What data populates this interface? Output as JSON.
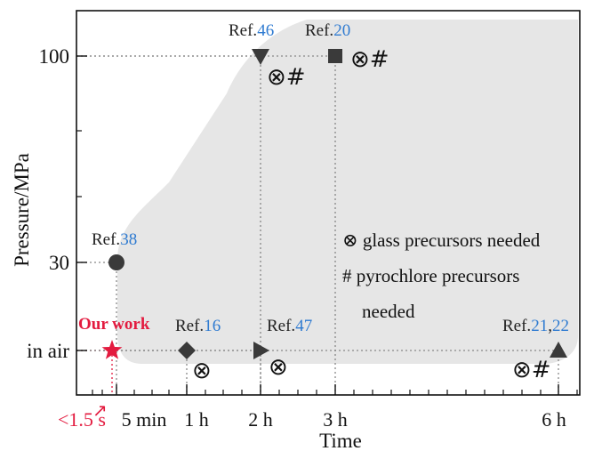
{
  "chart_data": {
    "type": "scatter",
    "title": "",
    "xlabel": "Time",
    "ylabel": "Pressure/MPa",
    "x_ticks": [
      "5 min",
      "1 h",
      "2 h",
      "3 h",
      "6 h"
    ],
    "x_extra_label": "<1.5 s",
    "y_ticks": [
      "100",
      "30",
      "in air"
    ],
    "grid": false,
    "points": [
      {
        "label": "Our work",
        "x": "<1.5 s",
        "y": "in air",
        "marker": "star",
        "color": "#e31b3f",
        "symbols": ""
      },
      {
        "label_prefix": "Ref.",
        "refs": [
          "38"
        ],
        "x": "5 min",
        "y": "30",
        "marker": "circle",
        "color": "#3a3a3a",
        "symbols": ""
      },
      {
        "label_prefix": "Ref.",
        "refs": [
          "16"
        ],
        "x": "1 h",
        "y": "in air",
        "marker": "diamond",
        "color": "#3a3a3a",
        "symbols": "⊗"
      },
      {
        "label_prefix": "Ref.",
        "refs": [
          "46"
        ],
        "x": "2 h",
        "y": "100",
        "marker": "triangle-down",
        "color": "#3a3a3a",
        "symbols": "⊗#"
      },
      {
        "label_prefix": "Ref.",
        "refs": [
          "47"
        ],
        "x": "2 h",
        "y": "in air",
        "marker": "triangle-right",
        "color": "#3a3a3a",
        "symbols": "⊗"
      },
      {
        "label_prefix": "Ref.",
        "refs": [
          "20"
        ],
        "x": "3 h",
        "y": "100",
        "marker": "square",
        "color": "#3a3a3a",
        "symbols": "⊗#"
      },
      {
        "label_prefix": "Ref.",
        "refs": [
          "21",
          "22"
        ],
        "x": "6 h",
        "y": "in air",
        "marker": "triangle-up",
        "color": "#3a3a3a",
        "symbols": "⊗#"
      }
    ],
    "notes": [
      "⊗ glass precursors needed",
      "# pyrochlore precursors",
      "needed"
    ],
    "colors": {
      "ours": "#e31b3f",
      "ref_number": "#2f7bd1",
      "marker": "#3a3a3a",
      "region": "#e6e6e6"
    }
  }
}
